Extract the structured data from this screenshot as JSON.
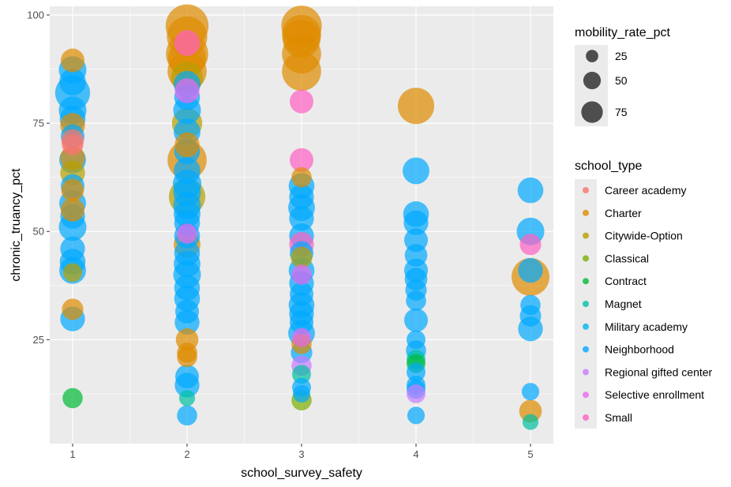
{
  "chart_data": {
    "type": "scatter",
    "xlabel": "school_survey_safety",
    "ylabel": "chronic_truancy_pct",
    "x_ticks": [
      "1",
      "2",
      "3",
      "4",
      "5"
    ],
    "y_ticks": [
      "25",
      "50",
      "75",
      "100"
    ],
    "xlim": [
      0.8,
      5.2
    ],
    "ylim": [
      1,
      102
    ],
    "grid": true,
    "legend_position": "right",
    "size_legend": {
      "title": "mobility_rate_pct",
      "entries": [
        {
          "label": "25",
          "value": 25
        },
        {
          "label": "50",
          "value": 50
        },
        {
          "label": "75",
          "value": 75
        }
      ]
    },
    "color_legend": {
      "title": "school_type",
      "entries": [
        {
          "label": "Career academy",
          "color": "#F8766D"
        },
        {
          "label": "Charter",
          "color": "#DE8C00"
        },
        {
          "label": "Citywide-Option",
          "color": "#B79F00"
        },
        {
          "label": "Classical",
          "color": "#7CAE00"
        },
        {
          "label": "Contract",
          "color": "#00BA38"
        },
        {
          "label": "Magnet",
          "color": "#00C1A3"
        },
        {
          "label": "Military academy",
          "color": "#00B8E7"
        },
        {
          "label": "Neighborhood",
          "color": "#00A9FF"
        },
        {
          "label": "Regional gifted center",
          "color": "#C77CFF"
        },
        {
          "label": "Selective enrollment",
          "color": "#ED68ED"
        },
        {
          "label": "Small",
          "color": "#FF61C3"
        }
      ]
    },
    "points": [
      {
        "x": 1,
        "y": 89.5,
        "size": 22,
        "type": "Charter"
      },
      {
        "x": 1,
        "y": 87.3,
        "size": 30,
        "type": "Neighborhood"
      },
      {
        "x": 1,
        "y": 84.5,
        "size": 28,
        "type": "Neighborhood"
      },
      {
        "x": 1,
        "y": 82.0,
        "size": 48,
        "type": "Neighborhood"
      },
      {
        "x": 1,
        "y": 78.0,
        "size": 30,
        "type": "Neighborhood"
      },
      {
        "x": 1,
        "y": 76.0,
        "size": 26,
        "type": "Neighborhood"
      },
      {
        "x": 1,
        "y": 74.5,
        "size": 24,
        "type": "Charter"
      },
      {
        "x": 1,
        "y": 72.0,
        "size": 22,
        "type": "Neighborhood"
      },
      {
        "x": 1,
        "y": 71.0,
        "size": 20,
        "type": "Career academy"
      },
      {
        "x": 1,
        "y": 70.0,
        "size": 18,
        "type": "Career academy"
      },
      {
        "x": 1,
        "y": 67.0,
        "size": 24,
        "type": "Charter"
      },
      {
        "x": 1,
        "y": 66.5,
        "size": 28,
        "type": "Neighborhood"
      },
      {
        "x": 1,
        "y": 63.5,
        "size": 24,
        "type": "Citywide-Option"
      },
      {
        "x": 1,
        "y": 60.5,
        "size": 22,
        "type": "Neighborhood"
      },
      {
        "x": 1,
        "y": 59.5,
        "size": 20,
        "type": "Charter"
      },
      {
        "x": 1,
        "y": 56.5,
        "size": 28,
        "type": "Neighborhood"
      },
      {
        "x": 1,
        "y": 55.0,
        "size": 22,
        "type": "Charter"
      },
      {
        "x": 1,
        "y": 53.5,
        "size": 24,
        "type": "Neighborhood"
      },
      {
        "x": 1,
        "y": 51.0,
        "size": 30,
        "type": "Neighborhood"
      },
      {
        "x": 1,
        "y": 46.0,
        "size": 24,
        "type": "Neighborhood"
      },
      {
        "x": 1,
        "y": 43.0,
        "size": 26,
        "type": "Neighborhood"
      },
      {
        "x": 1,
        "y": 41.0,
        "size": 28,
        "type": "Neighborhood"
      },
      {
        "x": 1,
        "y": 40.5,
        "size": 14,
        "type": "Citywide-Option"
      },
      {
        "x": 1,
        "y": 32.0,
        "size": 18,
        "type": "Charter"
      },
      {
        "x": 1,
        "y": 29.8,
        "size": 24,
        "type": "Neighborhood"
      },
      {
        "x": 1,
        "y": 11.5,
        "size": 16,
        "type": "Contract"
      },
      {
        "x": 2,
        "y": 97.5,
        "size": 72,
        "type": "Charter"
      },
      {
        "x": 2,
        "y": 95.0,
        "size": 64,
        "type": "Charter"
      },
      {
        "x": 2,
        "y": 93.5,
        "size": 26,
        "type": "Small"
      },
      {
        "x": 2,
        "y": 91.0,
        "size": 70,
        "type": "Charter"
      },
      {
        "x": 2,
        "y": 90.0,
        "size": 56,
        "type": "Charter"
      },
      {
        "x": 2,
        "y": 87.0,
        "size": 60,
        "type": "Charter"
      },
      {
        "x": 2,
        "y": 85.5,
        "size": 40,
        "type": "Citywide-Option"
      },
      {
        "x": 2,
        "y": 84.0,
        "size": 28,
        "type": "Neighborhood"
      },
      {
        "x": 2,
        "y": 82.5,
        "size": 24,
        "type": "Selective enrollment"
      },
      {
        "x": 2,
        "y": 81.0,
        "size": 26,
        "type": "Neighborhood"
      },
      {
        "x": 2,
        "y": 78.0,
        "size": 30,
        "type": "Neighborhood"
      },
      {
        "x": 2,
        "y": 75.0,
        "size": 36,
        "type": "Citywide-Option"
      },
      {
        "x": 2,
        "y": 73.0,
        "size": 28,
        "type": "Neighborhood"
      },
      {
        "x": 2,
        "y": 70.0,
        "size": 24,
        "type": "Charter"
      },
      {
        "x": 2,
        "y": 68.5,
        "size": 26,
        "type": "Neighborhood"
      },
      {
        "x": 2,
        "y": 66.5,
        "size": 60,
        "type": "Charter"
      },
      {
        "x": 2,
        "y": 64.0,
        "size": 28,
        "type": "Neighborhood"
      },
      {
        "x": 2,
        "y": 61.0,
        "size": 32,
        "type": "Neighborhood"
      },
      {
        "x": 2,
        "y": 59.0,
        "size": 30,
        "type": "Neighborhood"
      },
      {
        "x": 2,
        "y": 58.0,
        "size": 52,
        "type": "Citywide-Option"
      },
      {
        "x": 2,
        "y": 56.0,
        "size": 30,
        "type": "Neighborhood"
      },
      {
        "x": 2,
        "y": 54.0,
        "size": 28,
        "type": "Neighborhood"
      },
      {
        "x": 2,
        "y": 52.0,
        "size": 26,
        "type": "Neighborhood"
      },
      {
        "x": 2,
        "y": 49.5,
        "size": 16,
        "type": "Selective enrollment"
      },
      {
        "x": 2,
        "y": 49.0,
        "size": 26,
        "type": "Neighborhood"
      },
      {
        "x": 2,
        "y": 47.0,
        "size": 28,
        "type": "Charter"
      },
      {
        "x": 2,
        "y": 45.0,
        "size": 26,
        "type": "Neighborhood"
      },
      {
        "x": 2,
        "y": 42.5,
        "size": 28,
        "type": "Neighborhood"
      },
      {
        "x": 2,
        "y": 40.0,
        "size": 30,
        "type": "Neighborhood"
      },
      {
        "x": 2,
        "y": 37.0,
        "size": 26,
        "type": "Neighborhood"
      },
      {
        "x": 2,
        "y": 34.5,
        "size": 26,
        "type": "Neighborhood"
      },
      {
        "x": 2,
        "y": 31.5,
        "size": 22,
        "type": "Neighborhood"
      },
      {
        "x": 2,
        "y": 29.0,
        "size": 24,
        "type": "Neighborhood"
      },
      {
        "x": 2,
        "y": 25.0,
        "size": 20,
        "type": "Charter"
      },
      {
        "x": 2,
        "y": 22.0,
        "size": 16,
        "type": "Charter"
      },
      {
        "x": 2,
        "y": 21.0,
        "size": 16,
        "type": "Charter"
      },
      {
        "x": 2,
        "y": 16.5,
        "size": 22,
        "type": "Neighborhood"
      },
      {
        "x": 2,
        "y": 14.5,
        "size": 24,
        "type": "Neighborhood"
      },
      {
        "x": 2,
        "y": 11.5,
        "size": 10,
        "type": "Magnet"
      },
      {
        "x": 2,
        "y": 7.5,
        "size": 16,
        "type": "Neighborhood"
      },
      {
        "x": 3,
        "y": 97.5,
        "size": 64,
        "type": "Charter"
      },
      {
        "x": 3,
        "y": 95.5,
        "size": 60,
        "type": "Charter"
      },
      {
        "x": 3,
        "y": 94.5,
        "size": 56,
        "type": "Charter"
      },
      {
        "x": 3,
        "y": 91.0,
        "size": 60,
        "type": "Charter"
      },
      {
        "x": 3,
        "y": 87.0,
        "size": 60,
        "type": "Charter"
      },
      {
        "x": 3,
        "y": 80.0,
        "size": 22,
        "type": "Small"
      },
      {
        "x": 3,
        "y": 66.5,
        "size": 22,
        "type": "Small"
      },
      {
        "x": 3,
        "y": 62.5,
        "size": 16,
        "type": "Charter"
      },
      {
        "x": 3,
        "y": 60.5,
        "size": 26,
        "type": "Neighborhood"
      },
      {
        "x": 3,
        "y": 58.0,
        "size": 24,
        "type": "Neighborhood"
      },
      {
        "x": 3,
        "y": 55.5,
        "size": 28,
        "type": "Neighborhood"
      },
      {
        "x": 3,
        "y": 53.0,
        "size": 24,
        "type": "Neighborhood"
      },
      {
        "x": 3,
        "y": 49.0,
        "size": 24,
        "type": "Neighborhood"
      },
      {
        "x": 3,
        "y": 47.0,
        "size": 24,
        "type": "Small"
      },
      {
        "x": 3,
        "y": 45.0,
        "size": 22,
        "type": "Neighborhood"
      },
      {
        "x": 3,
        "y": 44.0,
        "size": 18,
        "type": "Citywide-Option"
      },
      {
        "x": 3,
        "y": 41.0,
        "size": 26,
        "type": "Neighborhood"
      },
      {
        "x": 3,
        "y": 40.0,
        "size": 16,
        "type": "Selective enrollment"
      },
      {
        "x": 3,
        "y": 38.0,
        "size": 24,
        "type": "Neighborhood"
      },
      {
        "x": 3,
        "y": 35.5,
        "size": 22,
        "type": "Neighborhood"
      },
      {
        "x": 3,
        "y": 33.0,
        "size": 26,
        "type": "Neighborhood"
      },
      {
        "x": 3,
        "y": 31.0,
        "size": 24,
        "type": "Neighborhood"
      },
      {
        "x": 3,
        "y": 29.0,
        "size": 22,
        "type": "Neighborhood"
      },
      {
        "x": 3,
        "y": 26.5,
        "size": 28,
        "type": "Neighborhood"
      },
      {
        "x": 3,
        "y": 25.5,
        "size": 14,
        "type": "Selective enrollment"
      },
      {
        "x": 3,
        "y": 24.0,
        "size": 16,
        "type": "Charter"
      },
      {
        "x": 3,
        "y": 22.0,
        "size": 18,
        "type": "Neighborhood"
      },
      {
        "x": 3,
        "y": 19.0,
        "size": 16,
        "type": "Regional gifted center"
      },
      {
        "x": 3,
        "y": 17.0,
        "size": 14,
        "type": "Magnet"
      },
      {
        "x": 3,
        "y": 14.0,
        "size": 14,
        "type": "Neighborhood"
      },
      {
        "x": 3,
        "y": 12.5,
        "size": 12,
        "type": "Neighborhood"
      },
      {
        "x": 3,
        "y": 11.0,
        "size": 16,
        "type": "Classical"
      },
      {
        "x": 4,
        "y": 79.0,
        "size": 52,
        "type": "Charter"
      },
      {
        "x": 4,
        "y": 64.0,
        "size": 28,
        "type": "Neighborhood"
      },
      {
        "x": 4,
        "y": 54.0,
        "size": 26,
        "type": "Neighborhood"
      },
      {
        "x": 4,
        "y": 52.0,
        "size": 24,
        "type": "Neighborhood"
      },
      {
        "x": 4,
        "y": 48.0,
        "size": 22,
        "type": "Neighborhood"
      },
      {
        "x": 4,
        "y": 44.5,
        "size": 20,
        "type": "Neighborhood"
      },
      {
        "x": 4,
        "y": 41.0,
        "size": 22,
        "type": "Neighborhood"
      },
      {
        "x": 4,
        "y": 39.0,
        "size": 20,
        "type": "Neighborhood"
      },
      {
        "x": 4,
        "y": 36.5,
        "size": 18,
        "type": "Neighborhood"
      },
      {
        "x": 4,
        "y": 34.0,
        "size": 16,
        "type": "Neighborhood"
      },
      {
        "x": 4,
        "y": 29.5,
        "size": 22,
        "type": "Neighborhood"
      },
      {
        "x": 4,
        "y": 25.0,
        "size": 14,
        "type": "Neighborhood"
      },
      {
        "x": 4,
        "y": 22.5,
        "size": 16,
        "type": "Neighborhood"
      },
      {
        "x": 4,
        "y": 20.5,
        "size": 14,
        "type": "Magnet"
      },
      {
        "x": 4,
        "y": 19.5,
        "size": 14,
        "type": "Contract"
      },
      {
        "x": 4,
        "y": 17.5,
        "size": 14,
        "type": "Neighborhood"
      },
      {
        "x": 4,
        "y": 14.5,
        "size": 14,
        "type": "Neighborhood"
      },
      {
        "x": 4,
        "y": 13.5,
        "size": 14,
        "type": "Neighborhood"
      },
      {
        "x": 4,
        "y": 12.5,
        "size": 14,
        "type": "Regional gifted center"
      },
      {
        "x": 4,
        "y": 7.5,
        "size": 12,
        "type": "Neighborhood"
      },
      {
        "x": 5,
        "y": 59.5,
        "size": 26,
        "type": "Neighborhood"
      },
      {
        "x": 5,
        "y": 50.0,
        "size": 30,
        "type": "Neighborhood"
      },
      {
        "x": 5,
        "y": 47.0,
        "size": 18,
        "type": "Small"
      },
      {
        "x": 5,
        "y": 41.0,
        "size": 24,
        "type": "Neighborhood"
      },
      {
        "x": 5,
        "y": 39.5,
        "size": 56,
        "type": "Charter"
      },
      {
        "x": 5,
        "y": 33.0,
        "size": 16,
        "type": "Neighborhood"
      },
      {
        "x": 5,
        "y": 30.5,
        "size": 18,
        "type": "Neighborhood"
      },
      {
        "x": 5,
        "y": 27.5,
        "size": 24,
        "type": "Neighborhood"
      },
      {
        "x": 5,
        "y": 13.0,
        "size": 12,
        "type": "Neighborhood"
      },
      {
        "x": 5,
        "y": 8.5,
        "size": 20,
        "type": "Charter"
      },
      {
        "x": 5,
        "y": 6.0,
        "size": 10,
        "type": "Magnet"
      }
    ]
  }
}
